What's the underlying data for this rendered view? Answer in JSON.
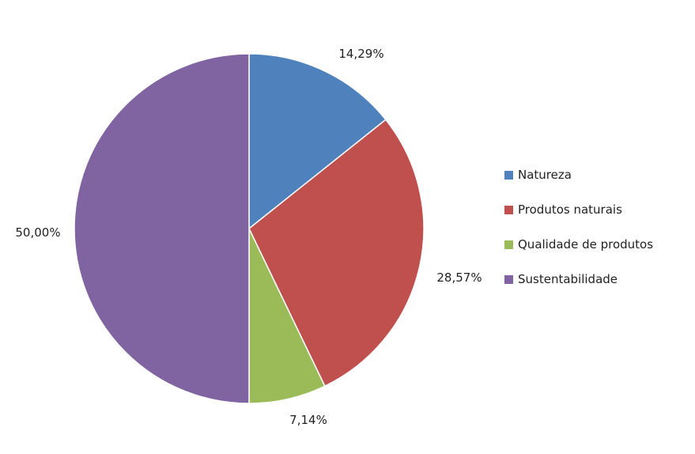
{
  "chart_data": {
    "type": "pie",
    "title": "",
    "slices": [
      {
        "label": "Natureza",
        "value": 14.29,
        "display": "14,29%",
        "color": "#4F81BD"
      },
      {
        "label": "Produtos naturais",
        "value": 28.57,
        "display": "28,57%",
        "color": "#C0504D"
      },
      {
        "label": "Qualidade de produtos",
        "value": 7.14,
        "display": "7,14%",
        "color": "#9BBB59"
      },
      {
        "label": "Sustentabilidade",
        "value": 50.0,
        "display": "50,00%",
        "color": "#8064A2"
      }
    ],
    "legend_position": "right",
    "start_angle": "12 o'clock, clockwise"
  }
}
